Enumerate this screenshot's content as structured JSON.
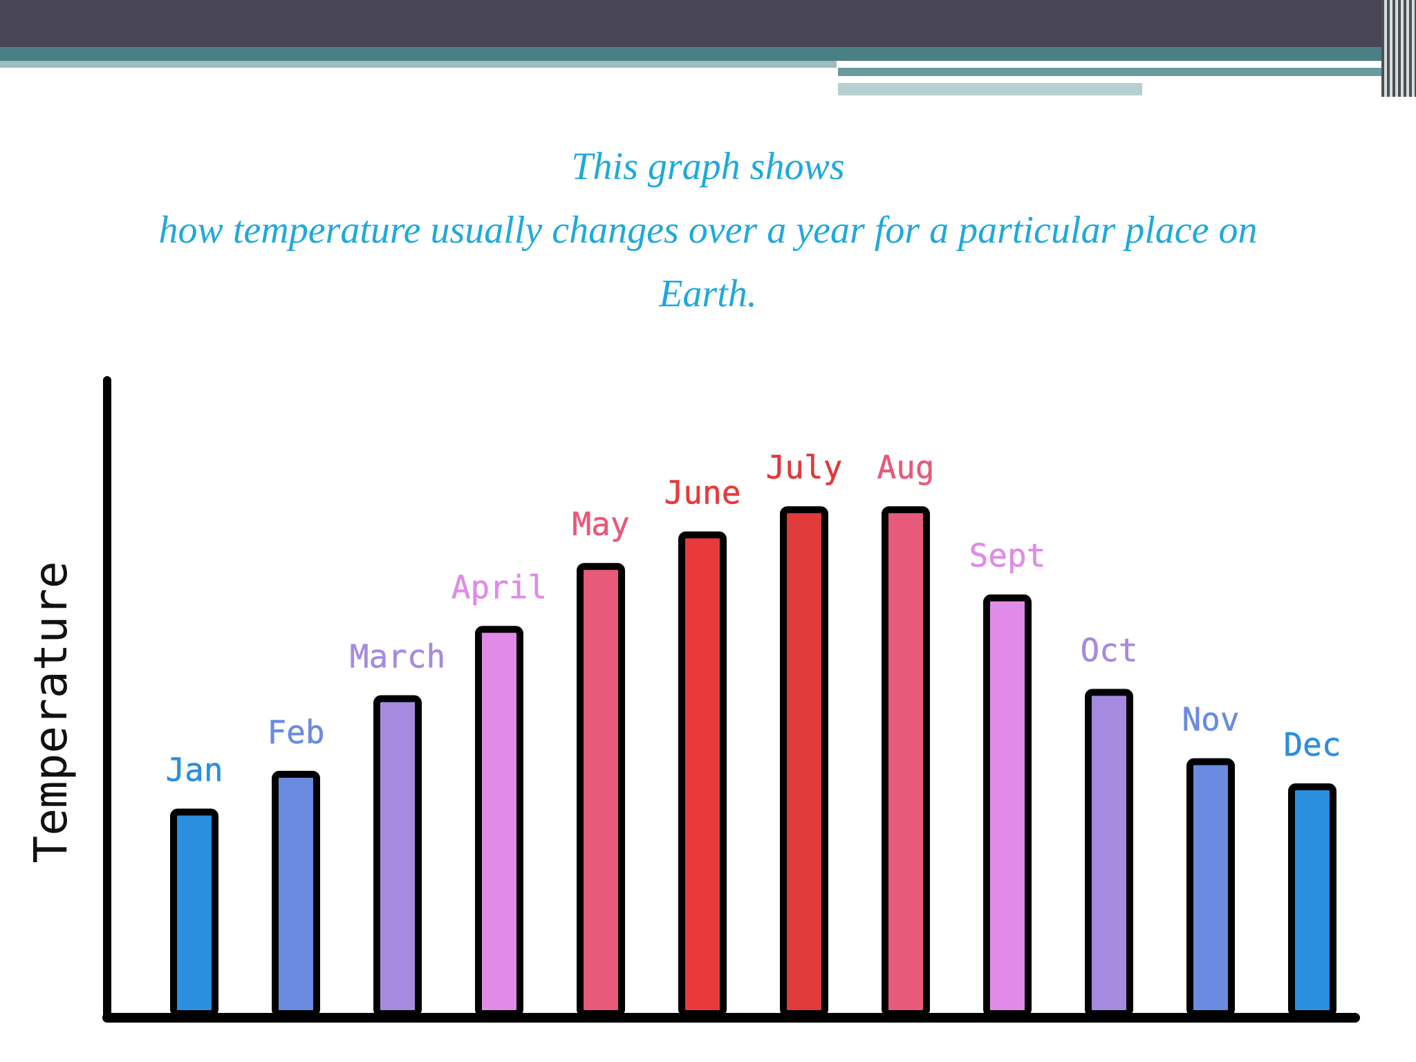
{
  "chart_data": {
    "type": "bar",
    "title_lines": [
      "This graph shows",
      "how temperature usually changes over a year for a particular place on",
      "Earth."
    ],
    "y_label": "Temperature",
    "categories": [
      "Jan",
      "Feb",
      "March",
      "April",
      "May",
      "June",
      "July",
      "Aug",
      "Sept",
      "Oct",
      "Nov",
      "Dec"
    ],
    "values": [
      32,
      38,
      50,
      61,
      71,
      76,
      80,
      80,
      66,
      51,
      40,
      36
    ],
    "colors": [
      "#2b8fe0",
      "#6a8be0",
      "#a58be0",
      "#e08be8",
      "#e85a7a",
      "#e83a3a",
      "#e03a3a",
      "#e85a7a",
      "#e08be8",
      "#a58be0",
      "#6a8be0",
      "#2b8fe0"
    ],
    "ylim": [
      0,
      100
    ]
  }
}
